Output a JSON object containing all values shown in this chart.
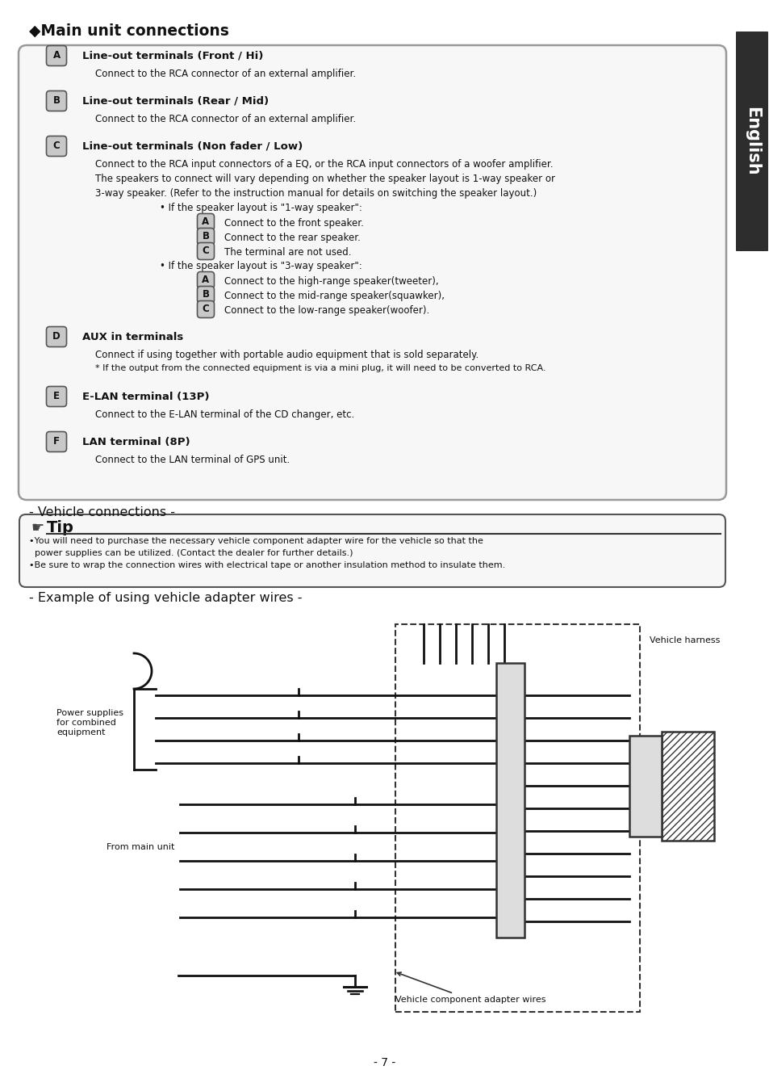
{
  "title": "◆Main unit connections",
  "bg_color": "#ffffff",
  "page_number": "- 7 -",
  "sidebar_text": "English",
  "sidebar_bg": "#2d2d2d",
  "terminals": [
    {
      "label": "A",
      "title": "Line-out terminals (Front / Hi)",
      "desc": [
        "Connect to the RCA connector of an external amplifier."
      ]
    },
    {
      "label": "B",
      "title": "Line-out terminals (Rear / Mid)",
      "desc": [
        "Connect to the RCA connector of an external amplifier."
      ]
    },
    {
      "label": "C",
      "title": "Line-out terminals (Non fader / Low)",
      "desc": [
        "Connect to the RCA input connectors of a EQ, or the RCA input connectors of a woofer amplifier.",
        "The speakers to connect will vary depending on whether the speaker layout is 1-way speaker or",
        "3-way speaker. (Refer to the instruction manual for details on switching the speaker layout.)",
        "BULLET|If the speaker layout is \"1-way speaker\":",
        "BADGE|A|Connect to the front speaker.",
        "BADGE|B|Connect to the rear speaker.",
        "BADGE|C|The terminal are not used.",
        "BULLET|If the speaker layout is \"3-way speaker\":",
        "BADGE|A|Connect to the high-range speaker(tweeter),",
        "BADGE|B|Connect to the mid-range speaker(squawker),",
        "BADGE|C|Connect to the low-range speaker(woofer)."
      ]
    },
    {
      "label": "D",
      "title": "AUX in terminals",
      "desc": [
        "Connect if using together with portable audio equipment that is sold separately.",
        "STAR|If the output from the connected equipment is via a mini plug, it will need to be converted to RCA."
      ]
    },
    {
      "label": "E",
      "title": "E-LAN terminal (13P)",
      "desc": [
        "Connect to the E-LAN terminal of the CD changer, etc."
      ]
    },
    {
      "label": "F",
      "title": "LAN terminal (8P)",
      "desc": [
        "Connect to the LAN terminal of GPS unit."
      ]
    }
  ],
  "vehicle_connections_title": "- Vehicle connections -",
  "tip_title": "Tip",
  "tip_lines": [
    "•You will need to purchase the necessary vehicle component adapter wire for the vehicle so that the",
    "  power supplies can be utilized. (Contact the dealer for further details.)",
    "•Be sure to wrap the connection wires with electrical tape or another insulation method to insulate them."
  ],
  "example_title": "- Example of using vehicle adapter wires -",
  "diagram_labels": {
    "vehicle_harness": "Vehicle harness",
    "power_supplies": "Power supplies\nfor combined\nequipment",
    "from_main_unit": "From main unit",
    "vehicle_adapter": "Vehicle component adapter wires"
  }
}
